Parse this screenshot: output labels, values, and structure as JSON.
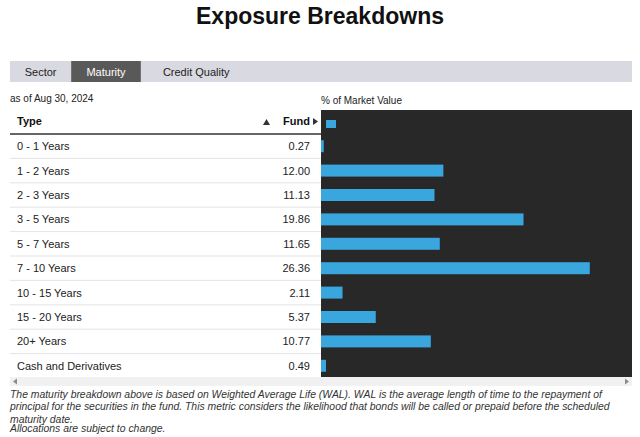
{
  "chart_data": {
    "type": "bar",
    "orientation": "horizontal",
    "title": "Exposure Breakdowns",
    "subtitle": "as of Aug 30, 2024",
    "xlabel": "% of Market Value",
    "ylabel": "Type",
    "categories": [
      "0 - 1 Years",
      "1 - 2 Years",
      "2 - 3 Years",
      "3 - 5 Years",
      "5 - 7 Years",
      "7 - 10 Years",
      "10 - 15 Years",
      "15 - 20 Years",
      "20+ Years",
      "Cash and Derivatives"
    ],
    "series": [
      {
        "name": "Fund",
        "color": "#3aa6de",
        "values": [
          0.27,
          12.0,
          11.13,
          19.86,
          11.65,
          26.36,
          2.11,
          5.37,
          10.77,
          0.49
        ],
        "value_labels": [
          "0.27",
          "12.00",
          "11.13",
          "19.86",
          "11.65",
          "26.36",
          "2.11",
          "5.37",
          "10.77",
          "0.49"
        ]
      }
    ],
    "xlim": [
      0,
      30.5
    ],
    "tick_labels": false,
    "data_labels": true,
    "grid": false
  },
  "page": {
    "tabs": [
      {
        "label": "Sector",
        "active": false
      },
      {
        "label": "Maturity",
        "active": true
      },
      {
        "label": "Credit Quality",
        "active": false
      }
    ],
    "notes": [
      "The maturity breakdown above is based on Weighted Average Life (WAL). WAL is the average length of time to the repayment of principal for the securities in the fund. This metric considers the likelihood that bonds will be called or prepaid before the scheduled maturity date.",
      "Allocations are subject to change."
    ]
  }
}
